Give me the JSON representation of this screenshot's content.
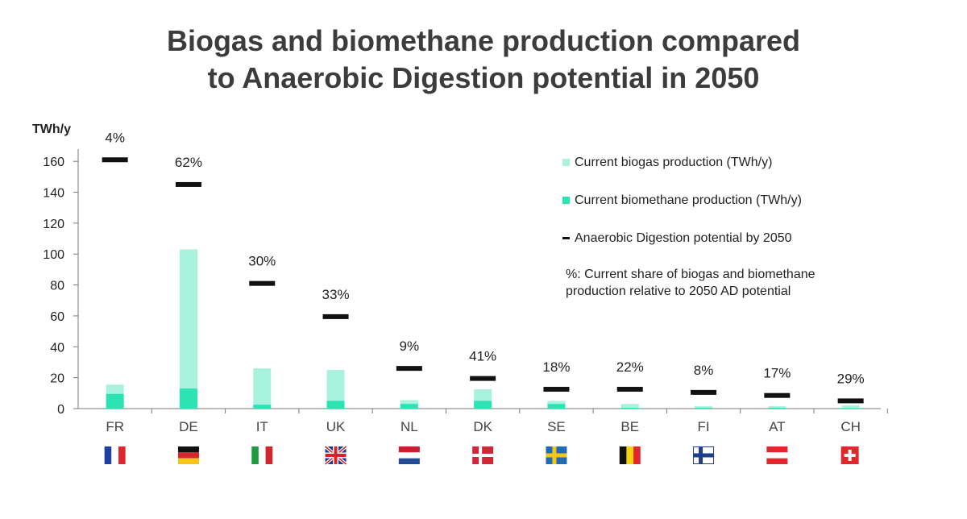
{
  "chart_data": {
    "type": "bar",
    "title": "Biogas and biomethane production compared to Anaerobic Digestion potential in 2050",
    "title_lines": [
      "Biogas and biomethane production compared",
      "to Anaerobic Digestion potential in 2050"
    ],
    "ylabel": "TWh/y",
    "xlabel": "",
    "ylim": [
      0,
      170
    ],
    "yticks": [
      0,
      20,
      40,
      60,
      80,
      100,
      120,
      140,
      160
    ],
    "categories": [
      "FR",
      "DE",
      "IT",
      "UK",
      "NL",
      "DK",
      "SE",
      "BE",
      "FI",
      "AT",
      "CH"
    ],
    "series": [
      {
        "name": "Current biogas production (TWh/y)",
        "color": "#a8f2de",
        "values": [
          15.5,
          103,
          26,
          25,
          5.5,
          12.5,
          5,
          3,
          1.5,
          1.5,
          2
        ]
      },
      {
        "name": "Current biomethane production (TWh/y)",
        "color": "#2ce3b4",
        "values": [
          9.5,
          13,
          2.5,
          5,
          3,
          5,
          3,
          0.5,
          0.5,
          0.5,
          0.3
        ]
      },
      {
        "name": "Anaerobic Digestion potential by 2050",
        "color": "#111111",
        "values": [
          161,
          145,
          81,
          59.5,
          26,
          19.5,
          12.5,
          12.5,
          10.5,
          8.5,
          5
        ]
      }
    ],
    "percent_labels": [
      "4%",
      "62%",
      "30%",
      "33%",
      "9%",
      "41%",
      "18%",
      "22%",
      "8%",
      "17%",
      "29%"
    ],
    "legend": [
      {
        "label": "Current biogas production (TWh/y)",
        "marker": "square",
        "color": "#a8f2de"
      },
      {
        "label": "Current biomethane production (TWh/y)",
        "marker": "square",
        "color": "#2ce3b4"
      },
      {
        "label": "Anaerobic Digestion potential by 2050",
        "marker": "dash",
        "color": "#111111"
      }
    ],
    "note_lines": [
      "%: Current share of biogas and biomethane",
      "production relative to 2050 AD potential"
    ],
    "flags": [
      "france-flag",
      "germany-flag",
      "italy-flag",
      "uk-flag",
      "netherlands-flag",
      "denmark-flag",
      "sweden-flag",
      "belgium-flag",
      "finland-flag",
      "austria-flag",
      "switzerland-flag"
    ]
  }
}
